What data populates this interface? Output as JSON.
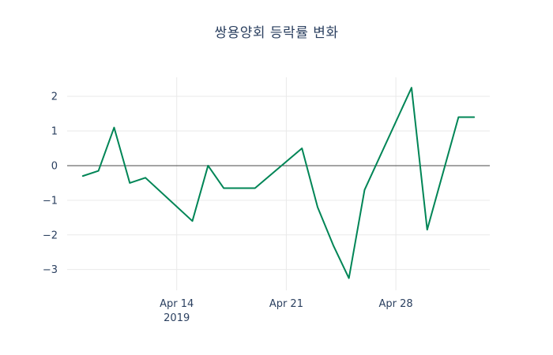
{
  "chart_data": {
    "type": "line",
    "title": "쌍용양회 등락률 변화",
    "xlabel": "",
    "ylabel": "",
    "series": [
      {
        "color": "#008556",
        "x": [
          "2019-04-08",
          "2019-04-09",
          "2019-04-10",
          "2019-04-11",
          "2019-04-12",
          "2019-04-15",
          "2019-04-16",
          "2019-04-17",
          "2019-04-18",
          "2019-04-19",
          "2019-04-22",
          "2019-04-23",
          "2019-04-24",
          "2019-04-25",
          "2019-04-26",
          "2019-04-29",
          "2019-04-30",
          "2019-05-02",
          "2019-05-03"
        ],
        "y": [
          -0.3,
          -0.15,
          1.1,
          -0.5,
          -0.35,
          -1.6,
          0.0,
          -0.65,
          -0.65,
          -0.65,
          0.5,
          -1.2,
          -2.3,
          -3.25,
          -0.7,
          2.25,
          -1.85,
          1.4,
          1.4
        ]
      }
    ],
    "x_ticks": [
      {
        "value": "2019-04-14",
        "label": "Apr 14",
        "sublabel": "2019"
      },
      {
        "value": "2019-04-21",
        "label": "Apr 21"
      },
      {
        "value": "2019-04-28",
        "label": "Apr 28"
      }
    ],
    "y_ticks": [
      {
        "value": 2,
        "label": "2"
      },
      {
        "value": 1,
        "label": "1"
      },
      {
        "value": 0,
        "label": "0"
      },
      {
        "value": -1,
        "label": "−1"
      },
      {
        "value": -2,
        "label": "−2"
      },
      {
        "value": -3,
        "label": "−3"
      }
    ],
    "xlim": [
      "2019-04-07",
      "2019-05-04"
    ],
    "ylim": [
      -3.6,
      2.55
    ],
    "grid": true,
    "legend": false,
    "zero_line": true,
    "colors": {
      "line": "#008556",
      "grid": "#e9e9e9",
      "zero_line": "#4a4a4a",
      "tick_label": "#2a3f5f",
      "title": "#2a3f5f",
      "background": "#ffffff"
    }
  }
}
